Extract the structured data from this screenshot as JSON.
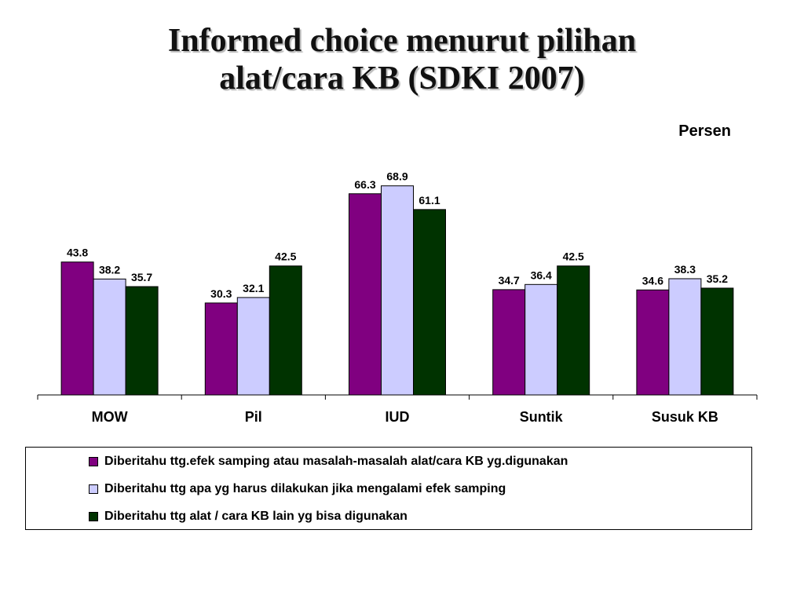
{
  "title_lines": [
    "Informed choice menurut pilihan",
    "alat/cara KB (SDKI 2007)"
  ],
  "unit_label": "Persen",
  "chart_data": {
    "type": "bar",
    "title": "Informed choice menurut pilihan alat/cara KB (SDKI 2007)",
    "ylabel": "Persen",
    "ylim": [
      0,
      70
    ],
    "grid": false,
    "legend_position": "bottom",
    "categories": [
      "MOW",
      "Pil",
      "IUD",
      "Suntik",
      "Susuk KB"
    ],
    "series": [
      {
        "name": "Diberitahu ttg.efek samping atau masalah-masalah alat/cara KB yg.digunakan",
        "color": "#800080",
        "values": [
          43.8,
          30.3,
          66.3,
          34.7,
          34.6
        ]
      },
      {
        "name": "Diberitahu ttg apa yg harus dilakukan jika mengalami efek samping",
        "color": "#ccccff",
        "values": [
          38.2,
          32.1,
          68.9,
          36.4,
          38.3
        ]
      },
      {
        "name": "Diberitahu ttg alat / cara KB lain yg bisa digunakan",
        "color": "#003300",
        "values": [
          35.7,
          42.5,
          61.1,
          42.5,
          35.2
        ]
      }
    ]
  }
}
